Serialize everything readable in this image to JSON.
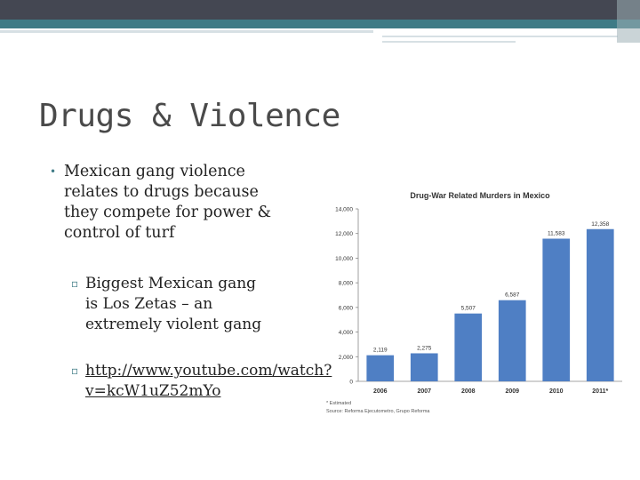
{
  "slide": {
    "title": "Drugs & Violence",
    "bullet_main": "Mexican gang violence relates to drugs because they compete for power & control of turf",
    "sub_bullets": [
      "Biggest Mexican gang is Los Zetas – an extremely violent gang",
      "http://www.youtube.com/watch?v=kcW1uZ52mYo"
    ]
  },
  "colors": {
    "dark_bar": "#444752",
    "teal_bar": "#3f7b86",
    "bar_fill": "#4f7fc4"
  },
  "chart_data": {
    "type": "bar",
    "title": "Drug-War Related Murders in Mexico",
    "categories": [
      "2006",
      "2007",
      "2008",
      "2009",
      "2010",
      "2011*"
    ],
    "values": [
      2119,
      2275,
      5507,
      6587,
      11583,
      12358
    ],
    "value_labels": [
      "2,119",
      "2,275",
      "5,507",
      "6,587",
      "11,583",
      "12,358"
    ],
    "ylim": [
      0,
      14000
    ],
    "yticks": [
      0,
      2000,
      4000,
      6000,
      8000,
      10000,
      12000,
      14000
    ],
    "ytick_labels": [
      "0",
      "2,000",
      "4,000",
      "6,000",
      "8,000",
      "10,000",
      "12,000",
      "14,000"
    ],
    "notes": [
      "* Estimated",
      "Source: Reforma Ejecutometro, Grupo Reforma"
    ],
    "grid": false,
    "legend": "none"
  }
}
